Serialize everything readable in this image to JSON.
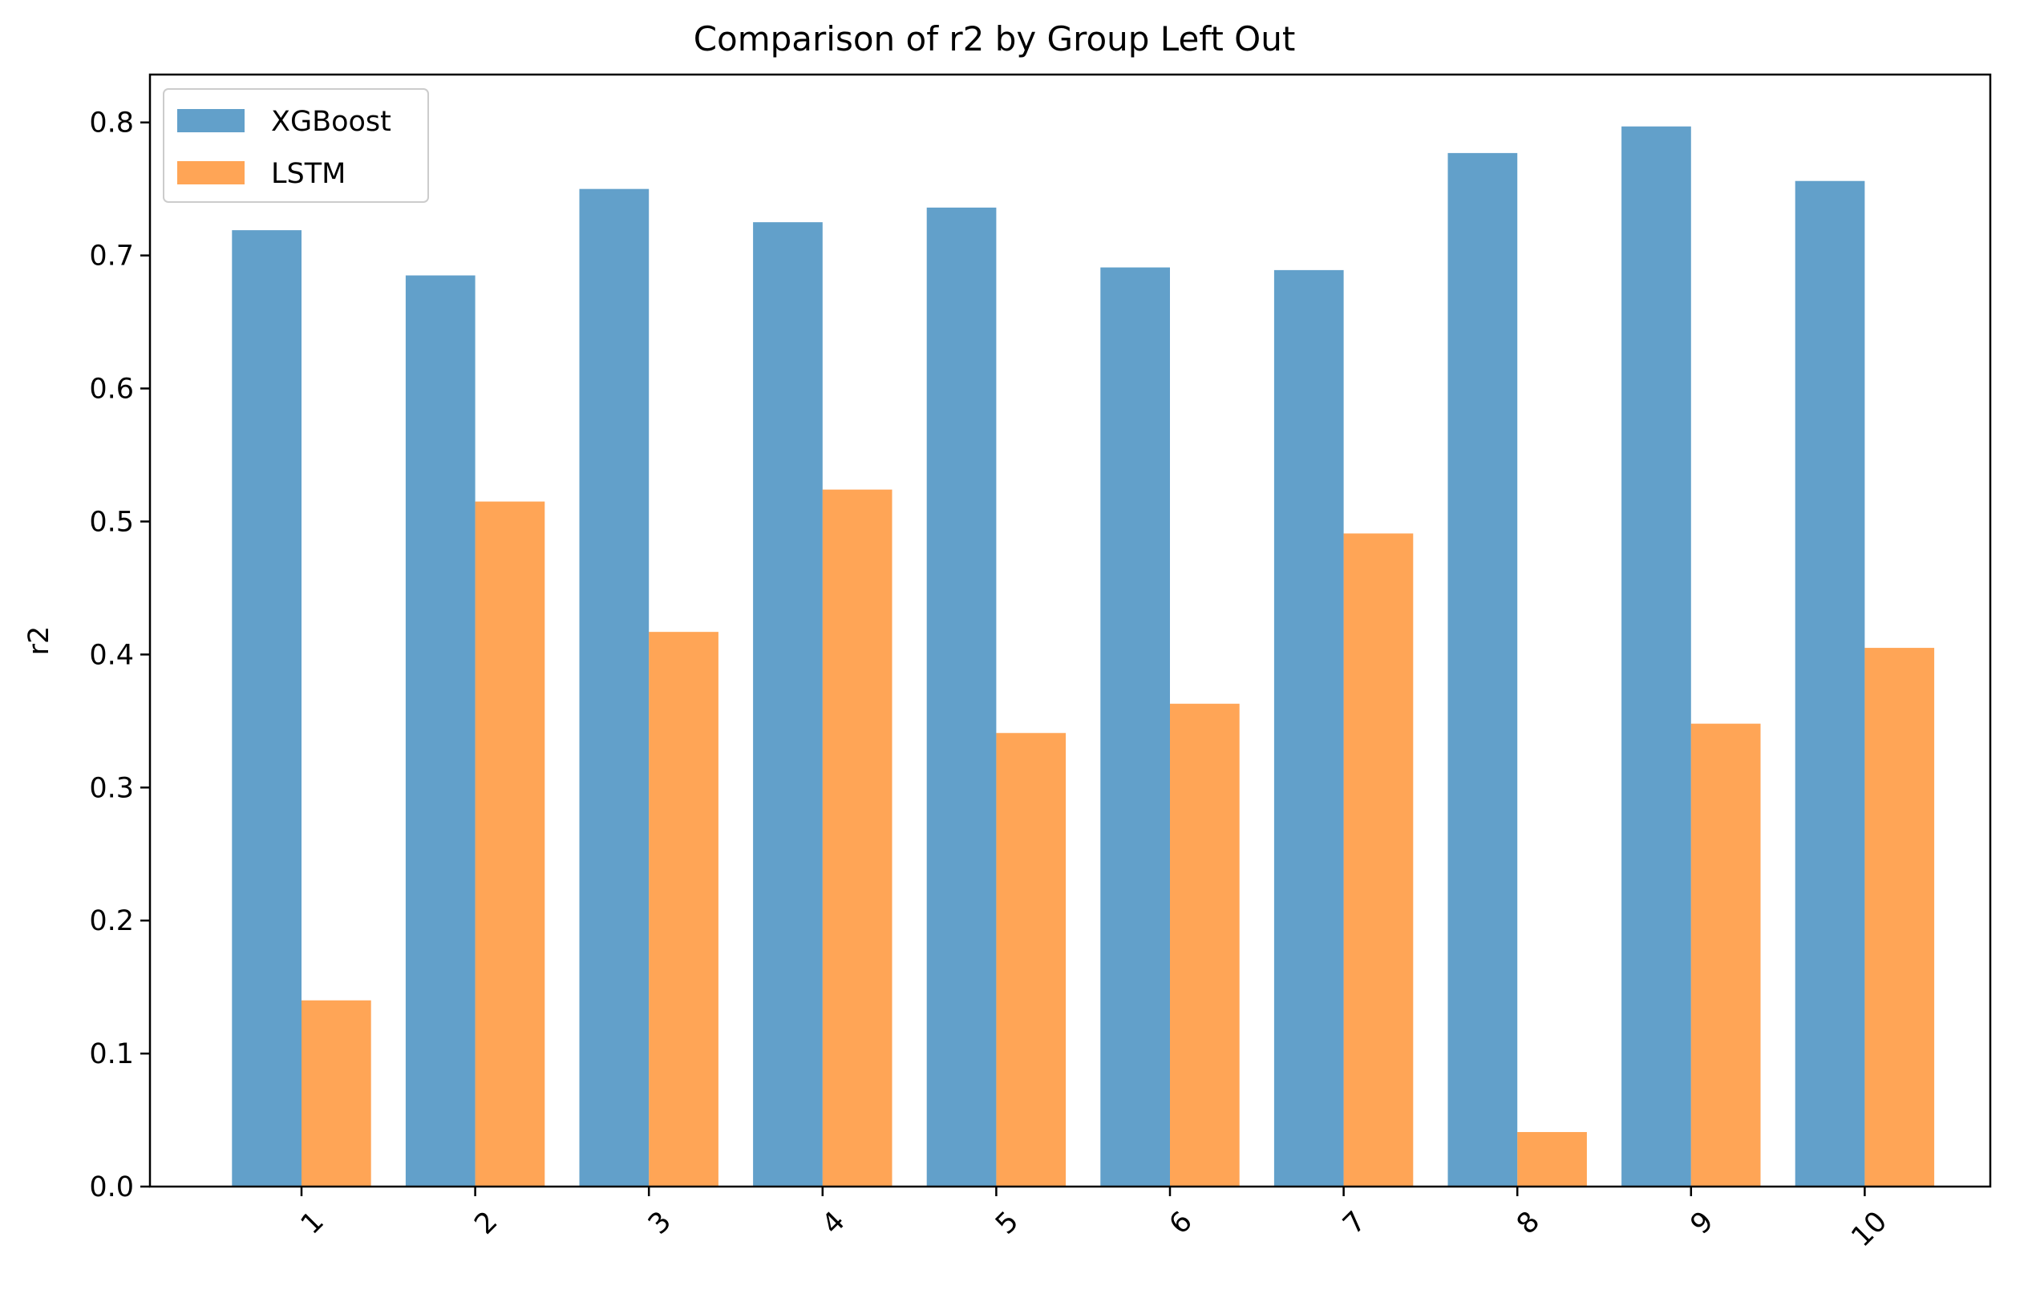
{
  "chart_data": {
    "type": "bar",
    "title": "Comparison of r2 by Group Left Out",
    "xlabel": "",
    "ylabel": "r2",
    "categories": [
      "1",
      "2",
      "3",
      "4",
      "5",
      "6",
      "7",
      "8",
      "9",
      "10"
    ],
    "series": [
      {
        "name": "XGBoost",
        "color": "#1f77b4",
        "opacity": 0.7,
        "values": [
          0.719,
          0.685,
          0.75,
          0.725,
          0.736,
          0.691,
          0.689,
          0.777,
          0.797,
          0.756
        ]
      },
      {
        "name": "LSTM",
        "color": "#ff7f0e",
        "opacity": 0.7,
        "values": [
          0.14,
          0.515,
          0.417,
          0.524,
          0.341,
          0.363,
          0.491,
          0.041,
          0.348,
          0.405
        ]
      }
    ],
    "ylim": [
      0,
      0.836
    ],
    "yticks": [
      "0.0",
      "0.1",
      "0.2",
      "0.3",
      "0.4",
      "0.5",
      "0.6",
      "0.7",
      "0.8"
    ],
    "xtick_rotation": 45,
    "grid": false,
    "legend_position": "upper left"
  }
}
